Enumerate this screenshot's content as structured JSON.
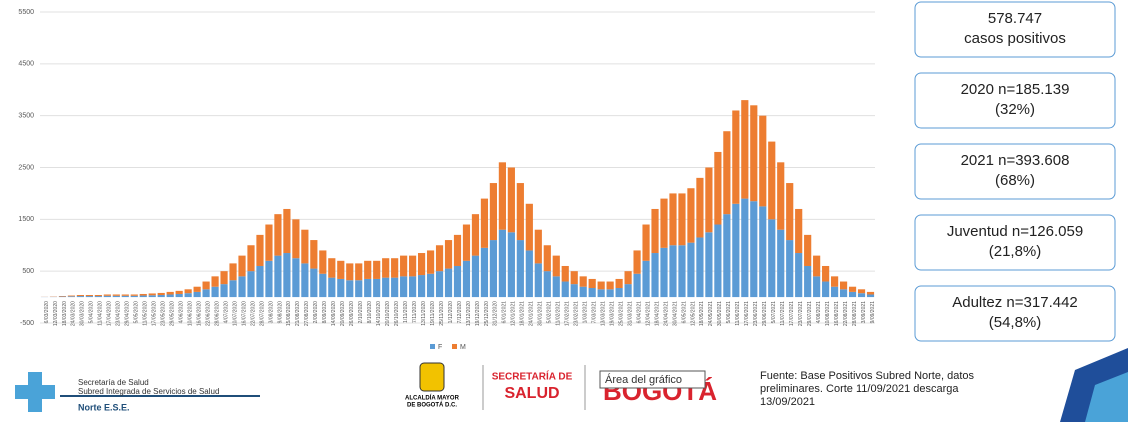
{
  "chart_data": {
    "type": "stacked_bar",
    "categories": [
      "6/03/2020",
      "12/03/2020",
      "18/03/2020",
      "24/03/2020",
      "30/03/2020",
      "5/04/2020",
      "11/04/2020",
      "17/04/2020",
      "23/04/2020",
      "29/04/2020",
      "5/05/2020",
      "11/05/2020",
      "17/05/2020",
      "23/05/2020",
      "29/05/2020",
      "4/06/2020",
      "10/06/2020",
      "16/06/2020",
      "22/06/2020",
      "28/06/2020",
      "4/07/2020",
      "10/07/2020",
      "16/07/2020",
      "22/07/2020",
      "28/07/2020",
      "3/08/2020",
      "9/08/2020",
      "15/08/2020",
      "21/08/2020",
      "27/08/2020",
      "2/09/2020",
      "8/09/2020",
      "14/09/2020",
      "20/09/2020",
      "26/09/2020",
      "2/10/2020",
      "8/10/2020",
      "14/10/2020",
      "20/10/2020",
      "26/10/2020",
      "1/11/2020",
      "7/11/2020",
      "13/11/2020",
      "19/11/2020",
      "25/11/2020",
      "1/12/2020",
      "7/12/2020",
      "13/12/2020",
      "19/12/2020",
      "25/12/2020",
      "31/12/2020",
      "6/01/2021",
      "12/01/2021",
      "18/01/2021",
      "24/01/2021",
      "30/01/2021",
      "5/02/2021",
      "11/02/2021",
      "17/02/2021",
      "23/02/2021",
      "1/03/2021",
      "7/03/2021",
      "13/03/2021",
      "19/03/2021",
      "25/03/2021",
      "31/03/2021",
      "6/04/2021",
      "12/04/2021",
      "18/04/2021",
      "24/04/2021",
      "30/04/2021",
      "6/05/2021",
      "12/05/2021",
      "18/05/2021",
      "24/05/2021",
      "30/05/2021",
      "5/06/2021",
      "11/06/2021",
      "17/06/2021",
      "23/06/2021",
      "29/06/2021",
      "5/07/2021",
      "11/07/2021",
      "17/07/2021",
      "23/07/2021",
      "29/07/2021",
      "4/08/2021",
      "10/08/2021",
      "16/08/2021",
      "22/08/2021",
      "28/08/2021",
      "3/09/2021",
      "9/09/2021"
    ],
    "series": [
      {
        "name": "F",
        "color": "#5b9bd5",
        "values": [
          3,
          5,
          10,
          15,
          20,
          20,
          20,
          25,
          25,
          25,
          25,
          30,
          35,
          40,
          50,
          60,
          75,
          100,
          150,
          200,
          250,
          325,
          400,
          500,
          600,
          700,
          800,
          850,
          750,
          650,
          550,
          450,
          375,
          350,
          325,
          325,
          350,
          350,
          375,
          375,
          400,
          400,
          425,
          450,
          500,
          550,
          600,
          700,
          800,
          950,
          1100,
          1300,
          1250,
          1100,
          900,
          650,
          500,
          400,
          300,
          250,
          200,
          175,
          150,
          150,
          175,
          250,
          450,
          700,
          850,
          950,
          1000,
          1000,
          1050,
          1150,
          1250,
          1400,
          1600,
          1800,
          1900,
          1850,
          1750,
          1500,
          1300,
          1100,
          850,
          600,
          400,
          300,
          200,
          150,
          100,
          75,
          50
        ]
      },
      {
        "name": "M",
        "color": "#ed7d31",
        "values": [
          2,
          5,
          10,
          15,
          20,
          20,
          20,
          25,
          25,
          25,
          25,
          30,
          35,
          40,
          50,
          60,
          75,
          100,
          150,
          200,
          250,
          325,
          400,
          500,
          600,
          700,
          800,
          850,
          750,
          650,
          550,
          450,
          375,
          350,
          325,
          325,
          350,
          350,
          375,
          375,
          400,
          400,
          425,
          450,
          500,
          550,
          600,
          700,
          800,
          950,
          1100,
          1300,
          1250,
          1100,
          900,
          650,
          500,
          400,
          300,
          250,
          200,
          175,
          150,
          150,
          175,
          250,
          450,
          700,
          850,
          950,
          1000,
          1000,
          1050,
          1150,
          1250,
          1400,
          1600,
          1800,
          1900,
          1850,
          1750,
          1500,
          1300,
          1100,
          850,
          600,
          400,
          300,
          200,
          150,
          100,
          75,
          50
        ]
      }
    ],
    "ylim": [
      -500,
      5500
    ],
    "yticks": [
      -500,
      500,
      1500,
      2500,
      3500,
      4500,
      5500
    ],
    "grid": true,
    "legend": "bottom"
  },
  "boxes": [
    [
      "578.747",
      "casos positivos"
    ],
    [
      "2020 n=185.139",
      "(32%)"
    ],
    [
      "2021 n=393.608",
      "(68%)"
    ],
    [
      "Juventud n=126.059",
      "(21,8%)"
    ],
    [
      "Adultez n=317.442",
      "(54,8%)"
    ]
  ],
  "footer": {
    "subred": [
      "Secretaría de Salud",
      "Subred Integrada de Servicios de Salud",
      "Norte E.S.E."
    ],
    "alcaldia": [
      "ALCALDÍA MAYOR",
      "DE BOGOTÁ D.C."
    ],
    "secretaria": [
      "SECRETARÍA DE",
      "SALUD"
    ],
    "bogota": "BOGOTÁ",
    "tooltip": "Área del gráfico",
    "source": [
      "Fuente: Base Positivos Subred Norte, datos",
      "preliminares. Corte 11/09/2021 descarga",
      "13/09/2021"
    ]
  }
}
